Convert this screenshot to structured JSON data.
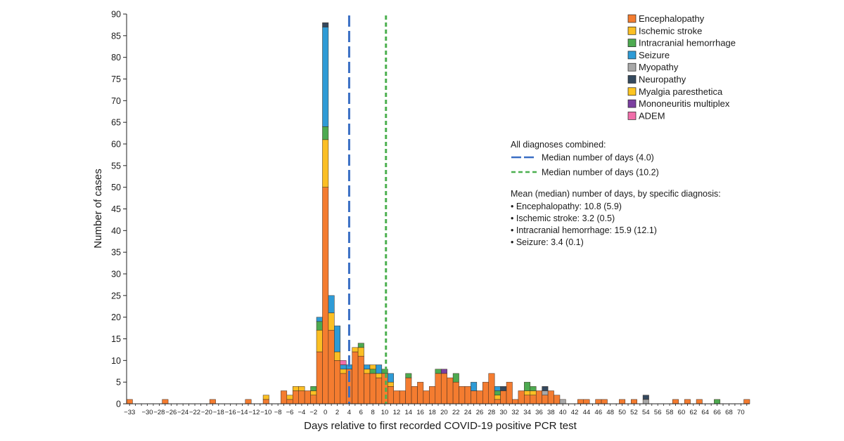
{
  "chart_data": {
    "type": "bar",
    "stacked": true,
    "xlabel": "Days relative to first recorded COVID-19 positive PCR test",
    "ylabel": "Number of cases",
    "xlim": [
      -33,
      71
    ],
    "ylim": [
      0,
      90
    ],
    "yticks": [
      0,
      5,
      10,
      15,
      20,
      25,
      30,
      35,
      40,
      45,
      50,
      55,
      60,
      65,
      70,
      75,
      80,
      85,
      90
    ],
    "xtick_labels": [
      "−33",
      "−30",
      "−28",
      "−26",
      "−24",
      "−22",
      "−20",
      "−18",
      "−16",
      "−14",
      "−12",
      "−10",
      "−8",
      "−6",
      "−4",
      "−2",
      "0",
      "2",
      "4",
      "6",
      "8",
      "10",
      "12",
      "14",
      "16",
      "18",
      "20",
      "22",
      "24",
      "26",
      "28",
      "30",
      "32",
      "34",
      "36",
      "38",
      "40",
      "42",
      "44",
      "46",
      "48",
      "50",
      "52",
      "54",
      "56",
      "58",
      "60",
      "62",
      "64",
      "66",
      "68",
      "70"
    ],
    "xtick_values": [
      -33,
      -30,
      -28,
      -26,
      -24,
      -22,
      -20,
      -18,
      -16,
      -14,
      -12,
      -10,
      -8,
      -6,
      -4,
      -2,
      0,
      2,
      4,
      6,
      8,
      10,
      12,
      14,
      16,
      18,
      20,
      22,
      24,
      26,
      28,
      30,
      32,
      34,
      36,
      38,
      40,
      42,
      44,
      46,
      48,
      50,
      52,
      54,
      56,
      58,
      60,
      62,
      64,
      66,
      68,
      70
    ],
    "legend": {
      "placement": "top-right",
      "entries": [
        {
          "name": "Encephalopathy",
          "color": "#f47c30"
        },
        {
          "name": "Ischemic stroke",
          "color": "#fbbf24"
        },
        {
          "name": "Intracranial hemorrhage",
          "color": "#4daa50"
        },
        {
          "name": "Seizure",
          "color": "#2e9bd6"
        },
        {
          "name": "Myopathy",
          "color": "#a8a8a8"
        },
        {
          "name": "Neuropathy",
          "color": "#34495e"
        },
        {
          "name": "Myalgia paresthetica",
          "color": "#fdc521"
        },
        {
          "name": "Mononeuritis multiplex",
          "color": "#7b3fa0"
        },
        {
          "name": "ADEM",
          "color": "#f06eaa"
        }
      ]
    },
    "medians": [
      {
        "label": "Median number of days (4.0)",
        "value": 4.0,
        "color": "#3a6fc4",
        "style": "long-dash"
      },
      {
        "label": "Median number of days (10.2)",
        "value": 10.2,
        "color": "#4cb050",
        "style": "short-dash"
      }
    ],
    "notes": {
      "combined_heading": "All diagnoses combined:",
      "specific_heading": "Mean (median) number of days, by specific diagnosis:",
      "lines": [
        "• Encephalopathy: 10.8 (5.9)",
        "• Ischemic stroke: 3.2 (0.5)",
        "• Intracranial hemorrhage: 15.9 (12.1)",
        "• Seizure: 3.4 (0.1)"
      ]
    },
    "bars": [
      {
        "x": -33,
        "stack": [
          [
            "Encephalopathy",
            1
          ]
        ]
      },
      {
        "x": -27,
        "stack": [
          [
            "Encephalopathy",
            1
          ]
        ]
      },
      {
        "x": -19,
        "stack": [
          [
            "Encephalopathy",
            1
          ]
        ]
      },
      {
        "x": -13,
        "stack": [
          [
            "Encephalopathy",
            1
          ]
        ]
      },
      {
        "x": -10,
        "stack": [
          [
            "Encephalopathy",
            1
          ],
          [
            "Ischemic stroke",
            1
          ]
        ]
      },
      {
        "x": -7,
        "stack": [
          [
            "Encephalopathy",
            3
          ]
        ]
      },
      {
        "x": -6,
        "stack": [
          [
            "Encephalopathy",
            1
          ],
          [
            "Ischemic stroke",
            1
          ]
        ]
      },
      {
        "x": -5,
        "stack": [
          [
            "Encephalopathy",
            3
          ],
          [
            "Ischemic stroke",
            1
          ]
        ]
      },
      {
        "x": -4,
        "stack": [
          [
            "Encephalopathy",
            3
          ],
          [
            "Ischemic stroke",
            1
          ]
        ]
      },
      {
        "x": -3,
        "stack": [
          [
            "Encephalopathy",
            3
          ]
        ]
      },
      {
        "x": -2,
        "stack": [
          [
            "Encephalopathy",
            2
          ],
          [
            "Ischemic stroke",
            1
          ],
          [
            "Intracranial hemorrhage",
            1
          ]
        ]
      },
      {
        "x": -1,
        "stack": [
          [
            "Encephalopathy",
            12
          ],
          [
            "Ischemic stroke",
            5
          ],
          [
            "Intracranial hemorrhage",
            2
          ],
          [
            "Seizure",
            1
          ]
        ]
      },
      {
        "x": 0,
        "stack": [
          [
            "Encephalopathy",
            50
          ],
          [
            "Ischemic stroke",
            11
          ],
          [
            "Intracranial hemorrhage",
            3
          ],
          [
            "Seizure",
            23
          ],
          [
            "Neuropathy",
            1
          ]
        ]
      },
      {
        "x": 1,
        "stack": [
          [
            "Encephalopathy",
            17
          ],
          [
            "Ischemic stroke",
            4
          ],
          [
            "Seizure",
            4
          ]
        ]
      },
      {
        "x": 2,
        "stack": [
          [
            "Encephalopathy",
            10
          ],
          [
            "Ischemic stroke",
            2
          ],
          [
            "Seizure",
            6
          ]
        ]
      },
      {
        "x": 3,
        "stack": [
          [
            "Encephalopathy",
            7
          ],
          [
            "Ischemic stroke",
            1
          ],
          [
            "Seizure",
            1
          ],
          [
            "ADEM",
            1
          ]
        ]
      },
      {
        "x": 4,
        "stack": [
          [
            "Encephalopathy",
            8
          ],
          [
            "Seizure",
            1
          ]
        ]
      },
      {
        "x": 5,
        "stack": [
          [
            "Encephalopathy",
            12
          ],
          [
            "Ischemic stroke",
            1
          ]
        ]
      },
      {
        "x": 6,
        "stack": [
          [
            "Encephalopathy",
            11
          ],
          [
            "Ischemic stroke",
            2
          ],
          [
            "Intracranial hemorrhage",
            1
          ]
        ]
      },
      {
        "x": 7,
        "stack": [
          [
            "Encephalopathy",
            7
          ],
          [
            "Ischemic stroke",
            1
          ],
          [
            "Seizure",
            1
          ]
        ]
      },
      {
        "x": 8,
        "stack": [
          [
            "Encephalopathy",
            7
          ],
          [
            "Intracranial hemorrhage",
            1
          ],
          [
            "Ischemic stroke",
            1
          ]
        ]
      },
      {
        "x": 9,
        "stack": [
          [
            "Encephalopathy",
            6
          ],
          [
            "Ischemic stroke",
            1
          ],
          [
            "Seizure",
            2
          ]
        ]
      },
      {
        "x": 10,
        "stack": [
          [
            "Encephalopathy",
            7
          ],
          [
            "Intracranial hemorrhage",
            1
          ]
        ]
      },
      {
        "x": 11,
        "stack": [
          [
            "Encephalopathy",
            4
          ],
          [
            "Ischemic stroke",
            1
          ],
          [
            "Seizure",
            2
          ]
        ]
      },
      {
        "x": 12,
        "stack": [
          [
            "Encephalopathy",
            3
          ]
        ]
      },
      {
        "x": 13,
        "stack": [
          [
            "Encephalopathy",
            3
          ]
        ]
      },
      {
        "x": 14,
        "stack": [
          [
            "Encephalopathy",
            6
          ],
          [
            "Intracranial hemorrhage",
            1
          ]
        ]
      },
      {
        "x": 15,
        "stack": [
          [
            "Encephalopathy",
            4
          ]
        ]
      },
      {
        "x": 16,
        "stack": [
          [
            "Encephalopathy",
            5
          ]
        ]
      },
      {
        "x": 17,
        "stack": [
          [
            "Encephalopathy",
            3
          ]
        ]
      },
      {
        "x": 18,
        "stack": [
          [
            "Encephalopathy",
            4
          ]
        ]
      },
      {
        "x": 19,
        "stack": [
          [
            "Encephalopathy",
            7
          ],
          [
            "Intracranial hemorrhage",
            1
          ]
        ]
      },
      {
        "x": 20,
        "stack": [
          [
            "Encephalopathy",
            7
          ],
          [
            "Mononeuritis multiplex",
            1
          ]
        ]
      },
      {
        "x": 21,
        "stack": [
          [
            "Encephalopathy",
            6
          ]
        ]
      },
      {
        "x": 22,
        "stack": [
          [
            "Encephalopathy",
            5
          ],
          [
            "Intracranial hemorrhage",
            2
          ]
        ]
      },
      {
        "x": 23,
        "stack": [
          [
            "Encephalopathy",
            4
          ]
        ]
      },
      {
        "x": 24,
        "stack": [
          [
            "Encephalopathy",
            4
          ]
        ]
      },
      {
        "x": 25,
        "stack": [
          [
            "Encephalopathy",
            3
          ],
          [
            "Seizure",
            2
          ]
        ]
      },
      {
        "x": 26,
        "stack": [
          [
            "Encephalopathy",
            3
          ]
        ]
      },
      {
        "x": 27,
        "stack": [
          [
            "Encephalopathy",
            5
          ]
        ]
      },
      {
        "x": 28,
        "stack": [
          [
            "Encephalopathy",
            7
          ]
        ]
      },
      {
        "x": 29,
        "stack": [
          [
            "Encephalopathy",
            1
          ],
          [
            "Ischemic stroke",
            1
          ],
          [
            "Intracranial hemorrhage",
            1
          ],
          [
            "Seizure",
            1
          ]
        ]
      },
      {
        "x": 30,
        "stack": [
          [
            "Encephalopathy",
            3
          ],
          [
            "Neuropathy",
            1
          ]
        ]
      },
      {
        "x": 31,
        "stack": [
          [
            "Encephalopathy",
            5
          ]
        ]
      },
      {
        "x": 32,
        "stack": [
          [
            "Encephalopathy",
            1
          ]
        ]
      },
      {
        "x": 33,
        "stack": [
          [
            "Encephalopathy",
            3
          ]
        ]
      },
      {
        "x": 34,
        "stack": [
          [
            "Encephalopathy",
            2
          ],
          [
            "Ischemic stroke",
            1
          ],
          [
            "Intracranial hemorrhage",
            2
          ]
        ]
      },
      {
        "x": 35,
        "stack": [
          [
            "Encephalopathy",
            2
          ],
          [
            "Ischemic stroke",
            1
          ],
          [
            "Intracranial hemorrhage",
            1
          ]
        ]
      },
      {
        "x": 36,
        "stack": [
          [
            "Encephalopathy",
            3
          ]
        ]
      },
      {
        "x": 37,
        "stack": [
          [
            "Encephalopathy",
            2
          ],
          [
            "Myopathy",
            1
          ],
          [
            "Neuropathy",
            1
          ]
        ]
      },
      {
        "x": 38,
        "stack": [
          [
            "Encephalopathy",
            3
          ]
        ]
      },
      {
        "x": 39,
        "stack": [
          [
            "Encephalopathy",
            2
          ]
        ]
      },
      {
        "x": 40,
        "stack": [
          [
            "Myopathy",
            1
          ]
        ]
      },
      {
        "x": 43,
        "stack": [
          [
            "Encephalopathy",
            1
          ]
        ]
      },
      {
        "x": 44,
        "stack": [
          [
            "Encephalopathy",
            1
          ]
        ]
      },
      {
        "x": 46,
        "stack": [
          [
            "Encephalopathy",
            1
          ]
        ]
      },
      {
        "x": 47,
        "stack": [
          [
            "Encephalopathy",
            1
          ]
        ]
      },
      {
        "x": 50,
        "stack": [
          [
            "Encephalopathy",
            1
          ]
        ]
      },
      {
        "x": 52,
        "stack": [
          [
            "Encephalopathy",
            1
          ]
        ]
      },
      {
        "x": 54,
        "stack": [
          [
            "Myopathy",
            1
          ],
          [
            "Neuropathy",
            1
          ]
        ]
      },
      {
        "x": 59,
        "stack": [
          [
            "Encephalopathy",
            1
          ]
        ]
      },
      {
        "x": 61,
        "stack": [
          [
            "Encephalopathy",
            1
          ]
        ]
      },
      {
        "x": 63,
        "stack": [
          [
            "Encephalopathy",
            1
          ]
        ]
      },
      {
        "x": 66,
        "stack": [
          [
            "Intracranial hemorrhage",
            1
          ]
        ]
      },
      {
        "x": 71,
        "stack": [
          [
            "Encephalopathy",
            1
          ]
        ]
      }
    ]
  }
}
